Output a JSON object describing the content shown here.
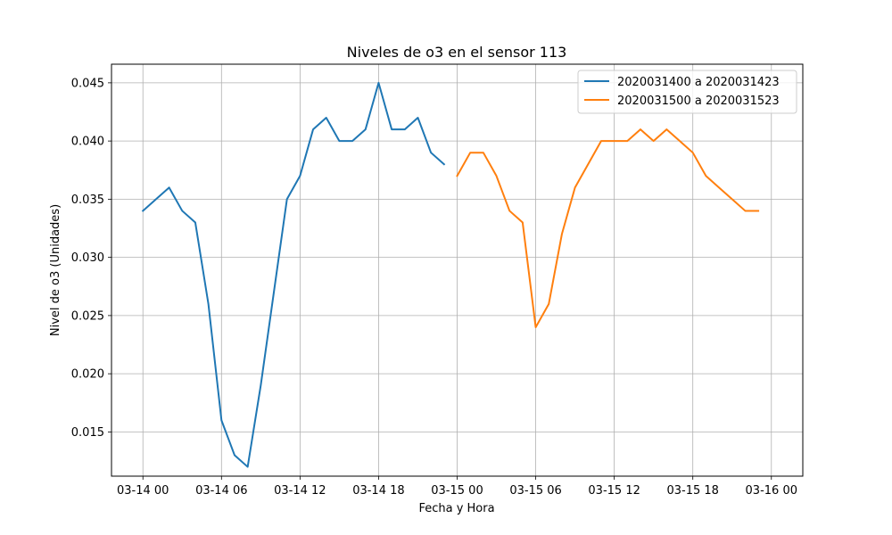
{
  "chart_data": {
    "type": "line",
    "title": "Niveles de o3 en el sensor 113",
    "xlabel": "Fecha y Hora",
    "ylabel": "Nivel de o3 (Unidades)",
    "x_unit": "hours",
    "xlim_hours": [
      -2.4,
      50.4
    ],
    "ylim": [
      0.0112,
      0.0466
    ],
    "x_ticks": [
      {
        "hour": 0,
        "label": "03-14 00"
      },
      {
        "hour": 6,
        "label": "03-14 06"
      },
      {
        "hour": 12,
        "label": "03-14 12"
      },
      {
        "hour": 18,
        "label": "03-14 18"
      },
      {
        "hour": 24,
        "label": "03-15 00"
      },
      {
        "hour": 30,
        "label": "03-15 06"
      },
      {
        "hour": 36,
        "label": "03-15 12"
      },
      {
        "hour": 42,
        "label": "03-15 18"
      },
      {
        "hour": 48,
        "label": "03-16 00"
      }
    ],
    "y_ticks": [
      {
        "value": 0.015,
        "label": "0.015"
      },
      {
        "value": 0.02,
        "label": "0.020"
      },
      {
        "value": 0.025,
        "label": "0.025"
      },
      {
        "value": 0.03,
        "label": "0.030"
      },
      {
        "value": 0.035,
        "label": "0.035"
      },
      {
        "value": 0.04,
        "label": "0.040"
      },
      {
        "value": 0.045,
        "label": "0.045"
      }
    ],
    "grid": true,
    "legend_position": "top-right",
    "series": [
      {
        "name": "2020031400 a 2020031423",
        "color": "#1f77b4",
        "x": [
          0,
          1,
          2,
          3,
          4,
          5,
          6,
          7,
          8,
          9,
          10,
          11,
          12,
          13,
          14,
          15,
          16,
          17,
          18,
          19,
          20,
          21,
          22,
          23
        ],
        "values": [
          0.034,
          0.035,
          0.036,
          0.034,
          0.033,
          0.026,
          0.016,
          0.013,
          0.012,
          0.019,
          0.027,
          0.035,
          0.037,
          0.041,
          0.042,
          0.04,
          0.04,
          0.041,
          0.045,
          0.041,
          0.041,
          0.042,
          0.039,
          0.038
        ]
      },
      {
        "name": "2020031500 a 2020031523",
        "color": "#ff7f0e",
        "x": [
          24,
          25,
          26,
          27,
          28,
          29,
          30,
          31,
          32,
          33,
          34,
          35,
          36,
          37,
          38,
          39,
          40,
          41,
          42,
          43,
          44,
          45,
          46,
          47
        ],
        "values": [
          0.037,
          0.039,
          0.039,
          0.037,
          0.034,
          0.033,
          0.024,
          0.026,
          0.032,
          0.036,
          0.038,
          0.04,
          0.04,
          0.04,
          0.041,
          0.04,
          0.041,
          0.04,
          0.039,
          0.037,
          0.036,
          0.035,
          0.034,
          0.034
        ]
      }
    ]
  }
}
